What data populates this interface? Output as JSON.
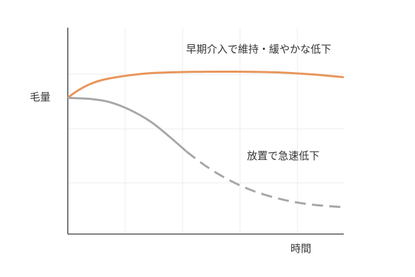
{
  "chart_data": {
    "type": "line",
    "title": "",
    "xlabel": "時間",
    "ylabel": "毛量",
    "grid": true,
    "x_range": [
      0,
      100
    ],
    "y_range": [
      0,
      100
    ],
    "series": [
      {
        "name": "早期介入で維持・緩やかな低下",
        "color": "#e8955a",
        "style": "solid",
        "points": [
          [
            0,
            66
          ],
          [
            3,
            69
          ],
          [
            7,
            72
          ],
          [
            12,
            74.5
          ],
          [
            20,
            76.5
          ],
          [
            30,
            78
          ],
          [
            45,
            78.6
          ],
          [
            60,
            78.7
          ],
          [
            75,
            78.4
          ],
          [
            88,
            77.4
          ],
          [
            100,
            76
          ]
        ]
      },
      {
        "name": "放置で急速低下",
        "color": "#a7a7a7",
        "style": "solid-then-dashed",
        "dash_start_x": 43,
        "points": [
          [
            0,
            66
          ],
          [
            8,
            65.5
          ],
          [
            15,
            64
          ],
          [
            22,
            60.5
          ],
          [
            30,
            54.5
          ],
          [
            37,
            47
          ],
          [
            43,
            40
          ],
          [
            50,
            33
          ],
          [
            58,
            26.5
          ],
          [
            67,
            21
          ],
          [
            77,
            17
          ],
          [
            87,
            14.5
          ],
          [
            100,
            13
          ]
        ]
      }
    ]
  }
}
